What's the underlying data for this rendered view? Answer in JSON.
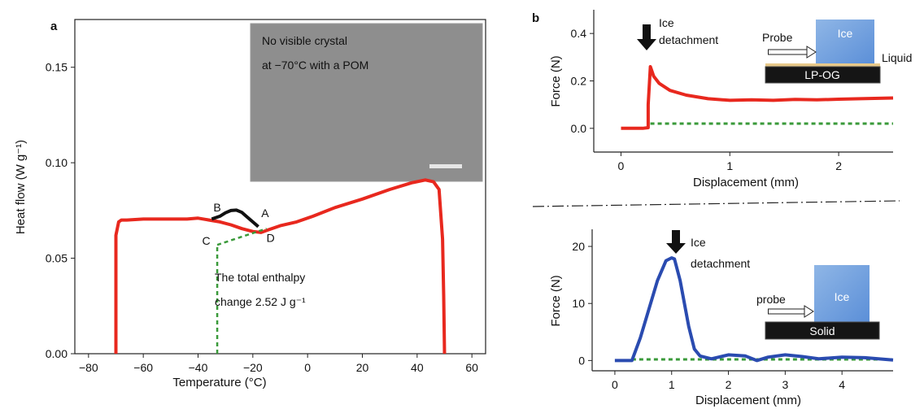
{
  "chart_data": [
    {
      "panel": "a",
      "type": "line",
      "xlabel": "Temperature (°C)",
      "ylabel": "Heat flow (W g⁻¹)",
      "xlim": [
        -85,
        65
      ],
      "ylim": [
        0,
        0.175
      ],
      "xticks": [
        -80,
        -60,
        -40,
        -20,
        0,
        20,
        40,
        60
      ],
      "yticks": [
        0.0,
        0.05,
        0.1,
        0.15
      ],
      "ytick_labels": [
        "0.00",
        "0.05",
        "0.10",
        "0.15"
      ],
      "series": [
        {
          "color": "#e8281e",
          "x": [
            -70,
            -70,
            -69,
            -68,
            -66,
            -60,
            -50,
            -44,
            -40,
            -36,
            -32,
            -28,
            -24,
            -20,
            -17,
            -14,
            -10,
            -4,
            2,
            10,
            20,
            30,
            38,
            43,
            46,
            48,
            49.3,
            49.7,
            50
          ],
          "y": [
            0,
            0.062,
            0.069,
            0.07,
            0.07,
            0.0705,
            0.0705,
            0.0705,
            0.071,
            0.07,
            0.069,
            0.0675,
            0.0655,
            0.064,
            0.0635,
            0.065,
            0.067,
            0.069,
            0.072,
            0.0765,
            0.081,
            0.086,
            0.0895,
            0.091,
            0.09,
            0.086,
            0.06,
            0.03,
            0
          ]
        },
        {
          "color": "#111111",
          "x": [
            -35,
            -32,
            -30,
            -28,
            -26,
            -24,
            -22,
            -20,
            -18
          ],
          "y": [
            0.0705,
            0.072,
            0.0738,
            0.075,
            0.0752,
            0.074,
            0.0715,
            0.069,
            0.0665
          ]
        }
      ],
      "baseline": {
        "x": [
          -33,
          -15
        ],
        "y": [
          0.057,
          0.0655
        ],
        "color": "#3a9a3a"
      },
      "vertical_guide": {
        "x": -33,
        "y": [
          0,
          0.057
        ]
      },
      "point_labels": [
        {
          "text": "B",
          "x": -33,
          "y": 0.0745
        },
        {
          "text": "A",
          "x": -15.5,
          "y": 0.0715
        },
        {
          "text": "C",
          "x": -37,
          "y": 0.057
        },
        {
          "text": "D",
          "x": -13.5,
          "y": 0.0585
        }
      ],
      "annotation": [
        "The total enthalpy",
        "change 2.52 J g⁻¹"
      ],
      "inset_text": [
        "No visible crystal",
        "at  −70°C  with a POM"
      ]
    },
    {
      "panel": "b",
      "type": "line",
      "xlabel": "Displacement (mm)",
      "ylabel": "Force (N)",
      "xlim": [
        -0.25,
        2.5
      ],
      "ylim": [
        -0.1,
        0.5
      ],
      "xticks": [
        0,
        1,
        2
      ],
      "yticks": [
        0.0,
        0.2,
        0.4
      ],
      "ytick_labels": [
        "0.0",
        "0.2",
        "0.4"
      ],
      "series": [
        {
          "color": "#e8281e",
          "x": [
            0,
            0.2,
            0.25,
            0.25,
            0.27,
            0.3,
            0.35,
            0.45,
            0.6,
            0.8,
            1.0,
            1.2,
            1.4,
            1.6,
            1.8,
            2.0,
            2.2,
            2.5
          ],
          "y": [
            0,
            0,
            0.003,
            0.1,
            0.26,
            0.22,
            0.19,
            0.16,
            0.14,
            0.125,
            0.118,
            0.12,
            0.118,
            0.122,
            0.12,
            0.123,
            0.125,
            0.128
          ]
        }
      ],
      "reference_line": {
        "x": [
          0.27,
          2.5
        ],
        "y": 0.02,
        "color": "#3a9a3a"
      },
      "arrow_label": [
        "Ice",
        "detachment"
      ],
      "schematic": {
        "block": "Ice",
        "pusher": "Probe",
        "layer": "Liquid",
        "substrate": "LP-OG"
      }
    },
    {
      "panel": "b-lower",
      "type": "line",
      "xlabel": "Displacement (mm)",
      "ylabel": "Force (N)",
      "xlim": [
        -0.4,
        4.9
      ],
      "ylim": [
        -1.8,
        23
      ],
      "xticks": [
        0,
        1,
        2,
        3,
        4
      ],
      "yticks": [
        0,
        10,
        20
      ],
      "ytick_labels": [
        "0",
        "10",
        "20"
      ],
      "series": [
        {
          "color": "#2a4bb0",
          "x": [
            0,
            0.3,
            0.45,
            0.6,
            0.75,
            0.9,
            1.0,
            1.05,
            1.15,
            1.3,
            1.4,
            1.5,
            1.7,
            2.0,
            2.3,
            2.5,
            2.7,
            3.0,
            3.3,
            3.6,
            4.0,
            4.4,
            4.9
          ],
          "y": [
            0,
            0,
            4,
            9,
            14,
            17.5,
            18,
            17.8,
            14,
            6,
            2,
            0.8,
            0.3,
            1.0,
            0.8,
            0,
            0.6,
            1.0,
            0.7,
            0.3,
            0.6,
            0.5,
            0.1
          ]
        }
      ],
      "reference_line": {
        "x": [
          0.3,
          4.9
        ],
        "y": 0.2,
        "color": "#3a9a3a"
      },
      "arrow_label": [
        "Ice",
        "detachment"
      ],
      "schematic": {
        "block": "Ice",
        "pusher": "probe",
        "substrate": "Solid"
      }
    }
  ],
  "panel_labels": {
    "a": "a",
    "b": "b"
  }
}
